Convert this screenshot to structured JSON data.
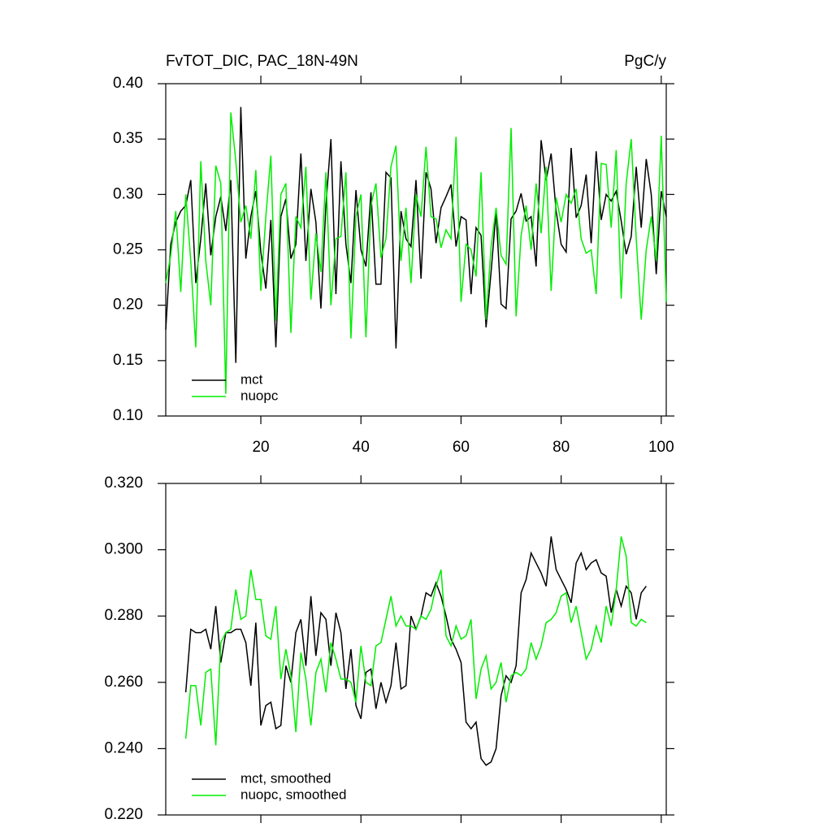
{
  "chart_data": [
    {
      "type": "line",
      "title": "FvTOT_DIC, PAC_18N-49N",
      "units": "PgC/y",
      "x": [
        1,
        2,
        3,
        4,
        5,
        6,
        7,
        8,
        9,
        10,
        11,
        12,
        13,
        14,
        15,
        16,
        17,
        18,
        19,
        20,
        21,
        22,
        23,
        24,
        25,
        26,
        27,
        28,
        29,
        30,
        31,
        32,
        33,
        34,
        35,
        36,
        37,
        38,
        39,
        40,
        41,
        42,
        43,
        44,
        45,
        46,
        47,
        48,
        49,
        50,
        51,
        52,
        53,
        54,
        55,
        56,
        57,
        58,
        59,
        60,
        61,
        62,
        63,
        64,
        65,
        66,
        67,
        68,
        69,
        70,
        71,
        72,
        73,
        74,
        75,
        76,
        77,
        78,
        79,
        80,
        81,
        82,
        83,
        84,
        85,
        86,
        87,
        88,
        89,
        90,
        91,
        92,
        93,
        94,
        95,
        96,
        97,
        98,
        99,
        100,
        101
      ],
      "series": [
        {
          "name": "mct",
          "color": "#000000",
          "values": [
            0.178,
            0.255,
            0.275,
            0.285,
            0.29,
            0.313,
            0.22,
            0.26,
            0.31,
            0.245,
            0.28,
            0.298,
            0.267,
            0.313,
            0.148,
            0.379,
            0.242,
            0.28,
            0.303,
            0.248,
            0.215,
            0.277,
            0.162,
            0.28,
            0.296,
            0.242,
            0.255,
            0.337,
            0.24,
            0.305,
            0.275,
            0.197,
            0.29,
            0.35,
            0.21,
            0.33,
            0.255,
            0.22,
            0.304,
            0.25,
            0.235,
            0.302,
            0.219,
            0.219,
            0.32,
            0.315,
            0.161,
            0.285,
            0.26,
            0.253,
            0.313,
            0.224,
            0.32,
            0.305,
            0.256,
            0.288,
            0.298,
            0.309,
            0.253,
            0.28,
            0.277,
            0.21,
            0.27,
            0.263,
            0.18,
            0.23,
            0.285,
            0.201,
            0.197,
            0.278,
            0.285,
            0.301,
            0.276,
            0.28,
            0.235,
            0.349,
            0.313,
            0.337,
            0.285,
            0.255,
            0.248,
            0.342,
            0.279,
            0.29,
            0.318,
            0.256,
            0.339,
            0.277,
            0.3,
            0.294,
            0.303,
            0.276,
            0.246,
            0.262,
            0.325,
            0.27,
            0.332,
            0.3,
            0.228,
            0.303,
            0.28
          ]
        },
        {
          "name": "nuopc",
          "color": "#00ee00",
          "values": [
            0.22,
            0.245,
            0.285,
            0.212,
            0.3,
            0.24,
            0.162,
            0.33,
            0.24,
            0.2,
            0.326,
            0.31,
            0.12,
            0.374,
            0.33,
            0.275,
            0.29,
            0.26,
            0.322,
            0.213,
            0.28,
            0.335,
            0.186,
            0.3,
            0.31,
            0.175,
            0.28,
            0.27,
            0.325,
            0.205,
            0.265,
            0.23,
            0.32,
            0.2,
            0.26,
            0.262,
            0.32,
            0.17,
            0.28,
            0.3,
            0.171,
            0.29,
            0.31,
            0.243,
            0.26,
            0.325,
            0.344,
            0.24,
            0.288,
            0.22,
            0.3,
            0.28,
            0.343,
            0.28,
            0.278,
            0.252,
            0.268,
            0.26,
            0.352,
            0.203,
            0.255,
            0.25,
            0.226,
            0.32,
            0.187,
            0.253,
            0.288,
            0.245,
            0.237,
            0.36,
            0.19,
            0.263,
            0.29,
            0.25,
            0.31,
            0.265,
            0.325,
            0.213,
            0.297,
            0.275,
            0.3,
            0.292,
            0.305,
            0.26,
            0.247,
            0.25,
            0.21,
            0.328,
            0.327,
            0.27,
            0.34,
            0.206,
            0.31,
            0.35,
            0.26,
            0.187,
            0.25,
            0.28,
            0.24,
            0.353,
            0.203
          ]
        }
      ],
      "xlim": [
        1,
        101
      ],
      "xticks": [
        20,
        40,
        60,
        80,
        100
      ],
      "xtick_labels": true,
      "ylim": [
        0.1,
        0.4
      ],
      "yticks": [
        {
          "value": 0.1,
          "label": "0.10"
        },
        0.15,
        {
          "value": 0.2,
          "label": "0.20"
        },
        0.25,
        {
          "value": 0.3,
          "label": "0.30"
        },
        0.35,
        {
          "value": 0.4,
          "label": "0.40"
        }
      ],
      "legend": "lower left"
    },
    {
      "type": "line",
      "x": [
        5,
        6,
        7,
        8,
        9,
        10,
        11,
        12,
        13,
        14,
        15,
        16,
        17,
        18,
        19,
        20,
        21,
        22,
        23,
        24,
        25,
        26,
        27,
        28,
        29,
        30,
        31,
        32,
        33,
        34,
        35,
        36,
        37,
        38,
        39,
        40,
        41,
        42,
        43,
        44,
        45,
        46,
        47,
        48,
        49,
        50,
        51,
        52,
        53,
        54,
        55,
        56,
        57,
        58,
        59,
        60,
        61,
        62,
        63,
        64,
        65,
        66,
        67,
        68,
        69,
        70,
        71,
        72,
        73,
        74,
        75,
        76,
        77,
        78,
        79,
        80,
        81,
        82,
        83,
        84,
        85,
        86,
        87,
        88,
        89,
        90,
        91,
        92,
        93,
        94,
        95,
        96,
        97
      ],
      "series": [
        {
          "name": "mct, smoothed",
          "color": "#000000",
          "values": [
            0.257,
            0.276,
            0.275,
            0.275,
            0.276,
            0.27,
            0.283,
            0.266,
            0.275,
            0.275,
            0.276,
            0.276,
            0.272,
            0.259,
            0.278,
            0.247,
            0.253,
            0.254,
            0.246,
            0.247,
            0.265,
            0.26,
            0.275,
            0.279,
            0.265,
            0.286,
            0.268,
            0.281,
            0.279,
            0.265,
            0.281,
            0.275,
            0.258,
            0.27,
            0.253,
            0.249,
            0.263,
            0.264,
            0.252,
            0.26,
            0.254,
            0.259,
            0.272,
            0.258,
            0.259,
            0.28,
            0.276,
            0.28,
            0.287,
            0.286,
            0.29,
            0.286,
            0.28,
            0.273,
            0.27,
            0.266,
            0.248,
            0.246,
            0.248,
            0.237,
            0.235,
            0.236,
            0.24,
            0.256,
            0.262,
            0.26,
            0.265,
            0.287,
            0.291,
            0.299,
            0.296,
            0.293,
            0.289,
            0.304,
            0.294,
            0.291,
            0.288,
            0.284,
            0.296,
            0.299,
            0.294,
            0.296,
            0.297,
            0.293,
            0.292,
            0.281,
            0.288,
            0.283,
            0.289,
            0.287,
            0.279,
            0.287,
            0.289
          ]
        },
        {
          "name": "nuopc, smoothed",
          "color": "#00ee00",
          "values": [
            0.243,
            0.259,
            0.259,
            0.247,
            0.263,
            0.264,
            0.241,
            0.272,
            0.275,
            0.276,
            0.288,
            0.279,
            0.28,
            0.294,
            0.285,
            0.285,
            0.274,
            0.273,
            0.283,
            0.261,
            0.27,
            0.262,
            0.245,
            0.269,
            0.261,
            0.247,
            0.263,
            0.267,
            0.257,
            0.272,
            0.267,
            0.261,
            0.261,
            0.26,
            0.254,
            0.271,
            0.26,
            0.259,
            0.271,
            0.272,
            0.279,
            0.286,
            0.277,
            0.28,
            0.277,
            0.277,
            0.276,
            0.28,
            0.279,
            0.282,
            0.289,
            0.294,
            0.274,
            0.271,
            0.277,
            0.273,
            0.274,
            0.279,
            0.255,
            0.264,
            0.268,
            0.258,
            0.26,
            0.266,
            0.254,
            0.262,
            0.263,
            0.262,
            0.264,
            0.272,
            0.267,
            0.271,
            0.278,
            0.279,
            0.281,
            0.286,
            0.287,
            0.278,
            0.283,
            0.275,
            0.267,
            0.27,
            0.277,
            0.272,
            0.283,
            0.277,
            0.288,
            0.304,
            0.298,
            0.278,
            0.277,
            0.279,
            0.278
          ]
        }
      ],
      "xlim": [
        1,
        101
      ],
      "xticks": [
        20,
        40,
        60,
        80,
        100
      ],
      "xtick_labels": false,
      "ylim": [
        0.22,
        0.32
      ],
      "yticks": [
        {
          "value": 0.22,
          "label": "0.220"
        },
        {
          "value": 0.24,
          "label": "0.240"
        },
        {
          "value": 0.26,
          "label": "0.260"
        },
        {
          "value": 0.28,
          "label": "0.280"
        },
        {
          "value": 0.3,
          "label": "0.300"
        },
        {
          "value": 0.32,
          "label": "0.320"
        }
      ],
      "legend": "lower left"
    }
  ]
}
